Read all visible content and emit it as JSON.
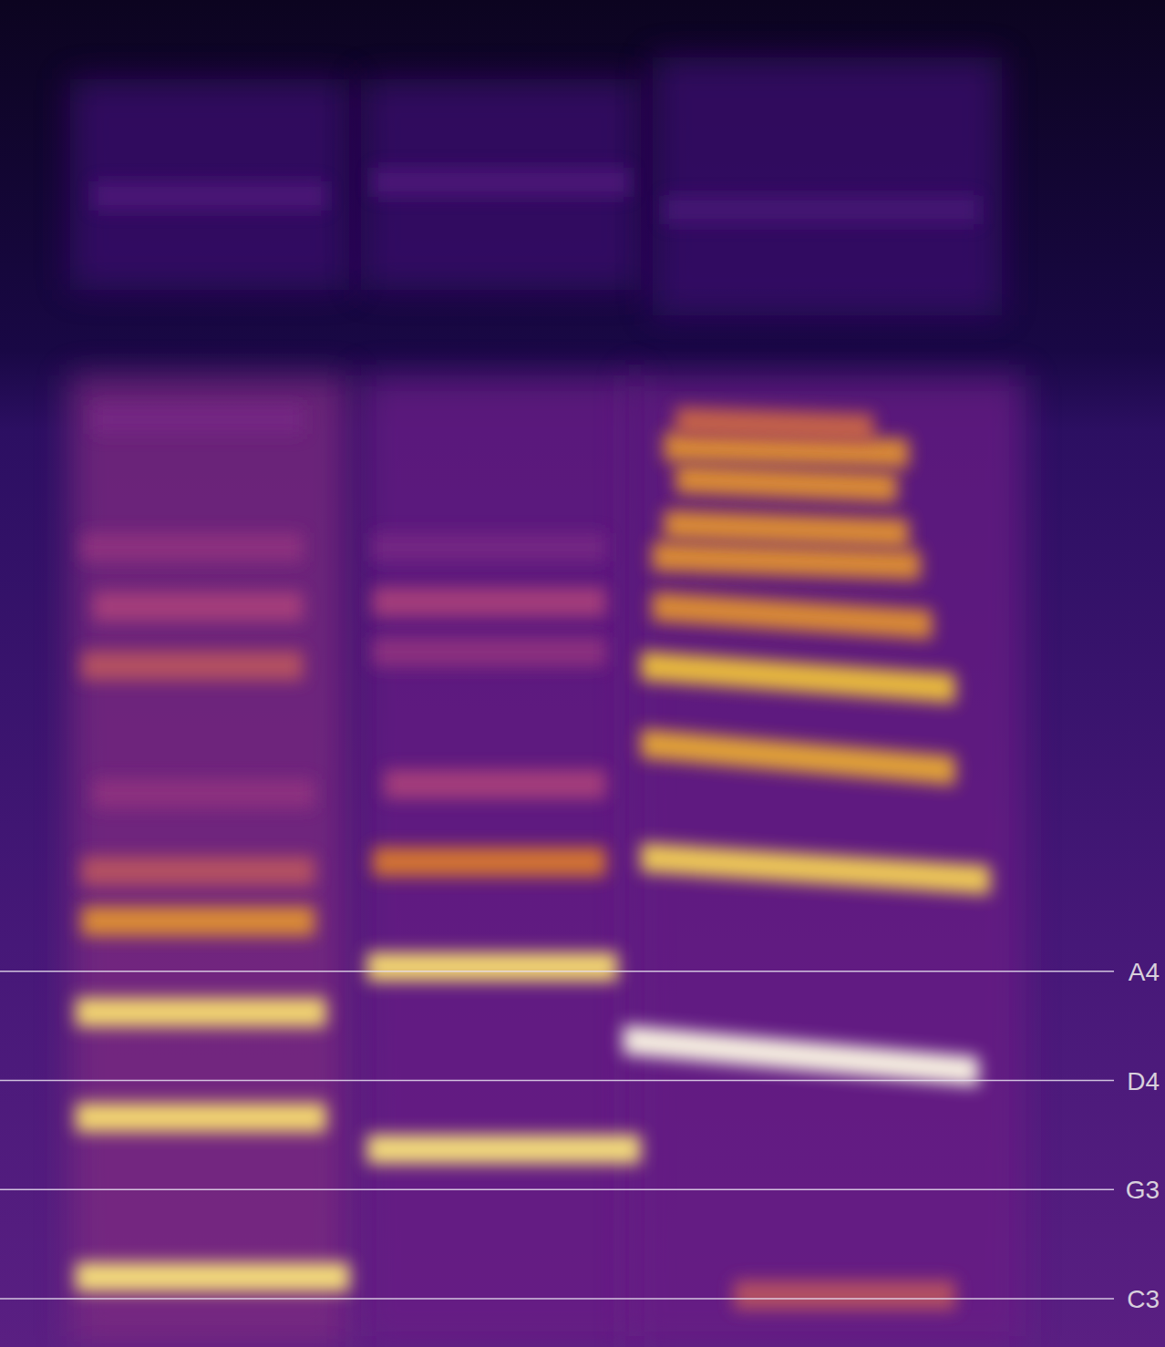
{
  "chart_data": {
    "type": "spectrogram",
    "log": "y",
    "grid": true,
    "tick_labels": "y",
    "xlim": [
      0,
      100
    ],
    "ylim": [
      109.4,
      16083
    ],
    "yticks": [
      {
        "value": 130.81,
        "label": "C3"
      },
      {
        "value": 196,
        "label": "G3"
      },
      {
        "value": 293.66,
        "label": "D4"
      },
      {
        "value": 440,
        "label": "A4"
      }
    ],
    "bands": [
      {
        "t0": 6,
        "t1": 30,
        "f0": 109.4,
        "f1": 4000,
        "level": 0.42
      },
      {
        "t0": 31,
        "t1": 55,
        "f0": 109.4,
        "f1": 4000,
        "level": 0.38
      },
      {
        "t0": 54,
        "t1": 88,
        "f0": 109.4,
        "f1": 4000,
        "level": 0.38
      },
      {
        "t0": 6,
        "t1": 30,
        "f0": 5500,
        "f1": 12000,
        "level": 0.25
      },
      {
        "t0": 31,
        "t1": 55,
        "f0": 5500,
        "f1": 12000,
        "level": 0.25
      },
      {
        "t0": 56,
        "t1": 86,
        "f0": 5000,
        "f1": 13000,
        "level": 0.25
      }
    ],
    "partials": [
      {
        "t0": 6.5,
        "t1": 30,
        "f0": 141.8,
        "f1": 141.8,
        "level": 0.92
      },
      {
        "t0": 6.5,
        "t1": 28,
        "f0": 256,
        "f1": 256,
        "level": 0.9
      },
      {
        "t0": 6.5,
        "t1": 28,
        "f0": 378,
        "f1": 378,
        "level": 0.9
      },
      {
        "t0": 7,
        "t1": 27,
        "f0": 530,
        "f1": 530,
        "level": 0.7
      },
      {
        "t0": 7,
        "t1": 27,
        "f0": 638,
        "f1": 638,
        "level": 0.55
      },
      {
        "t0": 8,
        "t1": 27,
        "f0": 850,
        "f1": 850,
        "level": 0.45
      },
      {
        "t0": 7,
        "t1": 26,
        "f0": 1365,
        "f1": 1365,
        "level": 0.55
      },
      {
        "t0": 8,
        "t1": 26,
        "f0": 1700,
        "f1": 1700,
        "level": 0.5
      },
      {
        "t0": 7,
        "t1": 26,
        "f0": 2118,
        "f1": 2118,
        "level": 0.45
      },
      {
        "t0": 8,
        "t1": 26,
        "f0": 3398,
        "f1": 3398,
        "level": 0.4
      },
      {
        "t0": 8,
        "t1": 28,
        "f0": 7779,
        "f1": 7779,
        "level": 0.3
      },
      {
        "t0": 31.5,
        "t1": 55,
        "f0": 227.6,
        "f1": 227.6,
        "level": 0.92
      },
      {
        "t0": 31.5,
        "t1": 53,
        "f0": 447.5,
        "f1": 447.5,
        "level": 0.9
      },
      {
        "t0": 32,
        "t1": 52,
        "f0": 660,
        "f1": 660,
        "level": 0.65
      },
      {
        "t0": 33,
        "t1": 52,
        "f0": 880,
        "f1": 880,
        "level": 0.5
      },
      {
        "t0": 32,
        "t1": 52,
        "f0": 1436,
        "f1": 1436,
        "level": 0.45
      },
      {
        "t0": 32,
        "t1": 52,
        "f0": 1729,
        "f1": 1729,
        "level": 0.5
      },
      {
        "t0": 32,
        "t1": 52,
        "f0": 2118,
        "f1": 2118,
        "level": 0.4
      },
      {
        "t0": 32,
        "t1": 54,
        "f0": 8184,
        "f1": 8184,
        "level": 0.3
      },
      {
        "t0": 53.5,
        "t1": 84,
        "f0": 341.6,
        "f1": 303.5,
        "level": 1.0
      },
      {
        "t0": 55,
        "t1": 85,
        "f0": 671,
        "f1": 617,
        "level": 0.85
      },
      {
        "t0": 55,
        "t1": 82,
        "f0": 1024,
        "f1": 925,
        "level": 0.75
      },
      {
        "t0": 55,
        "t1": 82,
        "f0": 1365,
        "f1": 1254,
        "level": 0.8
      },
      {
        "t0": 56,
        "t1": 80,
        "f0": 1700,
        "f1": 1589,
        "level": 0.7
      },
      {
        "t0": 56,
        "t1": 79,
        "f0": 2047,
        "f1": 1979,
        "level": 0.7
      },
      {
        "t0": 57,
        "t1": 78,
        "f0": 2304,
        "f1": 2228,
        "level": 0.7
      },
      {
        "t0": 58,
        "t1": 77,
        "f0": 2728,
        "f1": 2638,
        "level": 0.7
      },
      {
        "t0": 57,
        "t1": 78,
        "f0": 3071,
        "f1": 2999,
        "level": 0.7
      },
      {
        "t0": 58,
        "t1": 75,
        "f0": 3375,
        "f1": 3286,
        "level": 0.6
      },
      {
        "t0": 63,
        "t1": 82,
        "f0": 132.6,
        "f1": 132.6,
        "level": 0.55
      },
      {
        "t0": 57,
        "t1": 84,
        "f0": 7393,
        "f1": 7393,
        "level": 0.28
      }
    ]
  }
}
